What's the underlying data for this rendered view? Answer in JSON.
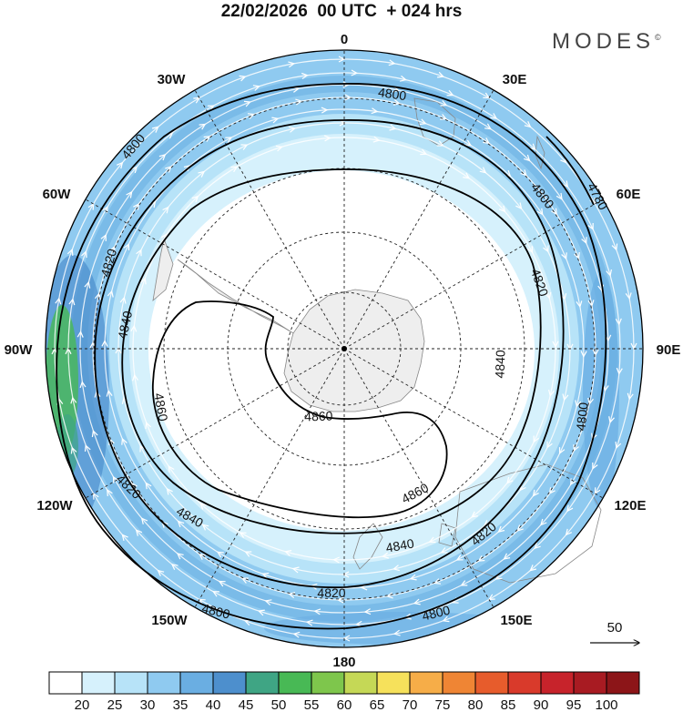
{
  "header": {
    "title": "22/02/2026  00 UTC  + 024 hrs",
    "logo": "MODES",
    "logo_mark": "©"
  },
  "map": {
    "projection": "south-polar-stereographic",
    "longitude_labels": [
      "0",
      "30E",
      "60E",
      "90E",
      "120E",
      "150E",
      "180",
      "150W",
      "120W",
      "90W",
      "60W",
      "30W"
    ],
    "contours": [
      {
        "value": "4780",
        "labels": [
          "4780"
        ]
      },
      {
        "value": "4800",
        "labels": [
          "4800",
          "4800",
          "4800",
          "4800",
          "4800",
          "4800"
        ]
      },
      {
        "value": "4820",
        "labels": [
          "4820",
          "4820",
          "4820",
          "4820",
          "4820"
        ]
      },
      {
        "value": "4840",
        "labels": [
          "4840",
          "4840",
          "4840",
          "4840"
        ]
      },
      {
        "value": "4860",
        "labels": [
          "4860",
          "4860",
          "4860"
        ]
      }
    ],
    "vector_reference": "50",
    "colors": {
      "land": "#eeeeee",
      "coast": "#888888"
    }
  },
  "colorbar": {
    "ticks": [
      "20",
      "25",
      "30",
      "35",
      "40",
      "45",
      "50",
      "55",
      "60",
      "65",
      "70",
      "75",
      "80",
      "85",
      "90",
      "95",
      "100"
    ],
    "colors": [
      "#ffffff",
      "#d6f1fc",
      "#b7e3f8",
      "#8fcaf0",
      "#6aaee2",
      "#4d8fcd",
      "#3fa584",
      "#48b955",
      "#7ec64c",
      "#c5d856",
      "#f6e15b",
      "#f6ad48",
      "#ef8534",
      "#e75c2c",
      "#d93a2b",
      "#c7232b",
      "#a81b22",
      "#8c1518"
    ]
  }
}
